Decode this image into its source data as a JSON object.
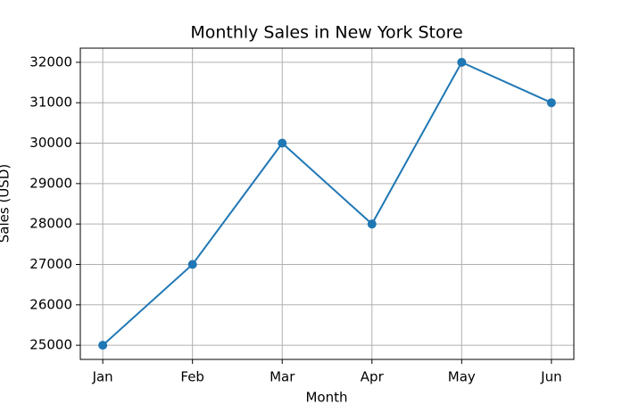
{
  "chart_data": {
    "type": "line",
    "title": "Monthly Sales in New York Store",
    "xlabel": "Month",
    "ylabel": "Sales (USD)",
    "categories": [
      "Jan",
      "Feb",
      "Mar",
      "Apr",
      "May",
      "Jun"
    ],
    "series": [
      {
        "name": "Sales",
        "color": "#1f77b4",
        "values": [
          25000,
          27000,
          30000,
          28000,
          32000,
          31000
        ]
      }
    ],
    "ylim": [
      24650,
      32350
    ],
    "yticks": [
      25000,
      26000,
      27000,
      28000,
      29000,
      30000,
      31000,
      32000
    ],
    "grid": true
  }
}
